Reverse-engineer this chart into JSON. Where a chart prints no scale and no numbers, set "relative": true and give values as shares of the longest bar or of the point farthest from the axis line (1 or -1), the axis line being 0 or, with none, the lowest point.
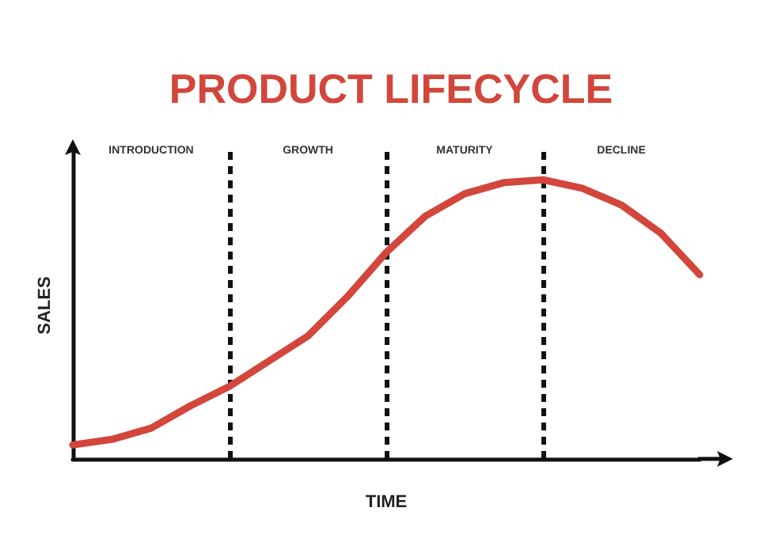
{
  "chart_data": {
    "type": "line",
    "title": "PRODUCT LIFECYCLE",
    "xlabel": "TIME",
    "ylabel": "SALES",
    "relative": true,
    "grid": "x",
    "marker": "none",
    "line_style": "solid",
    "categories": [
      null,
      null,
      null,
      null,
      null,
      null,
      null,
      null,
      null,
      null,
      null,
      null,
      null,
      null,
      null,
      null,
      null
    ],
    "series": [
      {
        "color": "#d2463b",
        "values": [
          0.05,
          0.07,
          0.11,
          0.19,
          0.26,
          0.35,
          0.44,
          0.58,
          0.74,
          0.87,
          0.95,
          0.99,
          1,
          0.97,
          0.91,
          0.81,
          0.66
        ]
      }
    ],
    "annotations": [
      "INTRODUCTION",
      "GROWTH",
      "MATURITY",
      "DECLINE"
    ]
  }
}
